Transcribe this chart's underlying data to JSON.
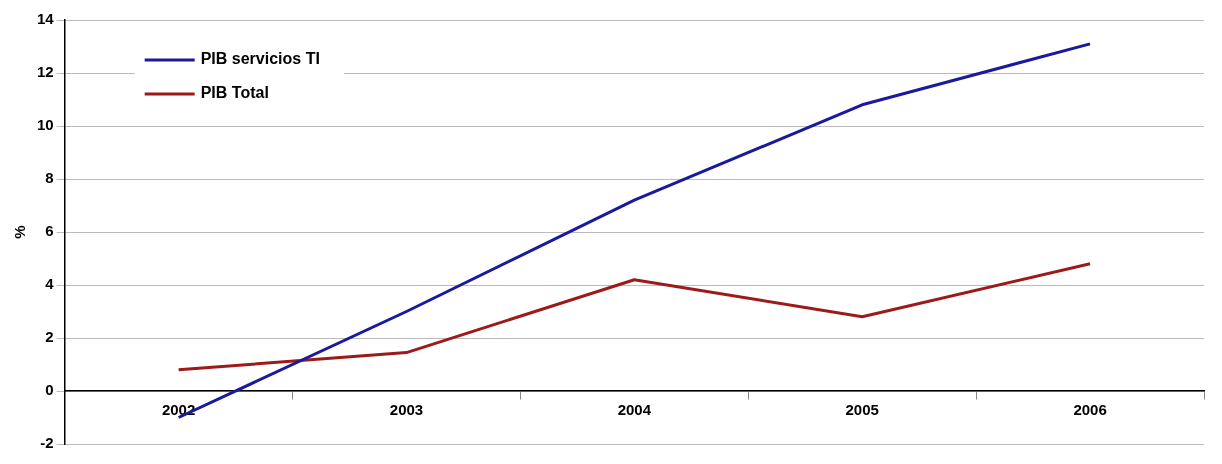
{
  "chart_data": {
    "type": "line",
    "ylabel": "%",
    "categories": [
      "2002",
      "2003",
      "2004",
      "2005",
      "2006"
    ],
    "series": [
      {
        "name": "PIB servicios TI",
        "color": "#1a1a9c",
        "values": [
          -1.0,
          3.0,
          7.2,
          10.8,
          13.1
        ]
      },
      {
        "name": "PIB Total",
        "color": "#9c1a1a",
        "values": [
          0.8,
          1.45,
          4.2,
          2.8,
          4.8
        ]
      }
    ],
    "ylim": [
      -2,
      14
    ],
    "yticks": [
      -2,
      0,
      2,
      4,
      6,
      8,
      10,
      12,
      14
    ],
    "grid": "y",
    "legend": "top left",
    "marker": "none",
    "line_style": "solid"
  }
}
